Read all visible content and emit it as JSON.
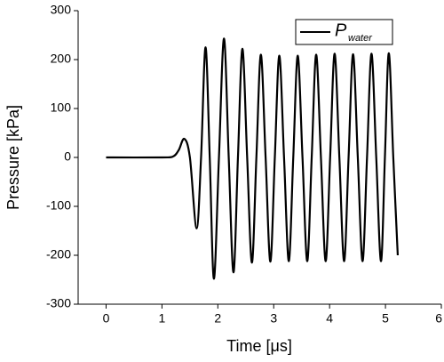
{
  "chart_data": {
    "type": "line",
    "x_label": "Time [μs]",
    "y_label": "Pressure [kPa]",
    "xlim": [
      -0.5,
      6
    ],
    "xticks": [
      0,
      1,
      2,
      3,
      4,
      5,
      6
    ],
    "ylim": [
      -300,
      300
    ],
    "yticks": [
      -300,
      -200,
      -100,
      0,
      100,
      200,
      300
    ],
    "legend": "upper right",
    "series": [
      {
        "name": "P",
        "name_subscript": "water",
        "color": "#000000",
        "x": [
          0,
          1.0,
          1.2,
          1.3,
          1.4,
          1.5,
          1.62,
          1.7,
          1.78,
          1.855,
          1.93,
          2.02,
          2.11,
          2.195,
          2.28,
          2.36,
          2.44,
          2.525,
          2.61,
          2.69,
          2.77,
          2.855,
          2.94,
          3.02,
          3.1,
          3.185,
          3.27,
          3.35,
          3.43,
          3.515,
          3.6,
          3.68,
          3.76,
          3.845,
          3.93,
          4.01,
          4.09,
          4.175,
          4.26,
          4.34,
          4.42,
          4.505,
          4.59,
          4.67,
          4.75,
          4.835,
          4.92,
          4.99,
          5.06,
          5.14,
          5.22
        ],
        "values": [
          0,
          0,
          2,
          15,
          38,
          0,
          -145,
          0,
          225,
          0,
          -248,
          0,
          243,
          0,
          -235,
          0,
          222,
          0,
          -215,
          0,
          210,
          0,
          -213,
          0,
          208,
          0,
          -212,
          0,
          208,
          0,
          -212,
          0,
          210,
          0,
          -212,
          0,
          212,
          0,
          -212,
          0,
          211,
          0,
          -212,
          0,
          212,
          0,
          -212,
          0,
          213,
          0,
          -200
        ]
      }
    ]
  }
}
